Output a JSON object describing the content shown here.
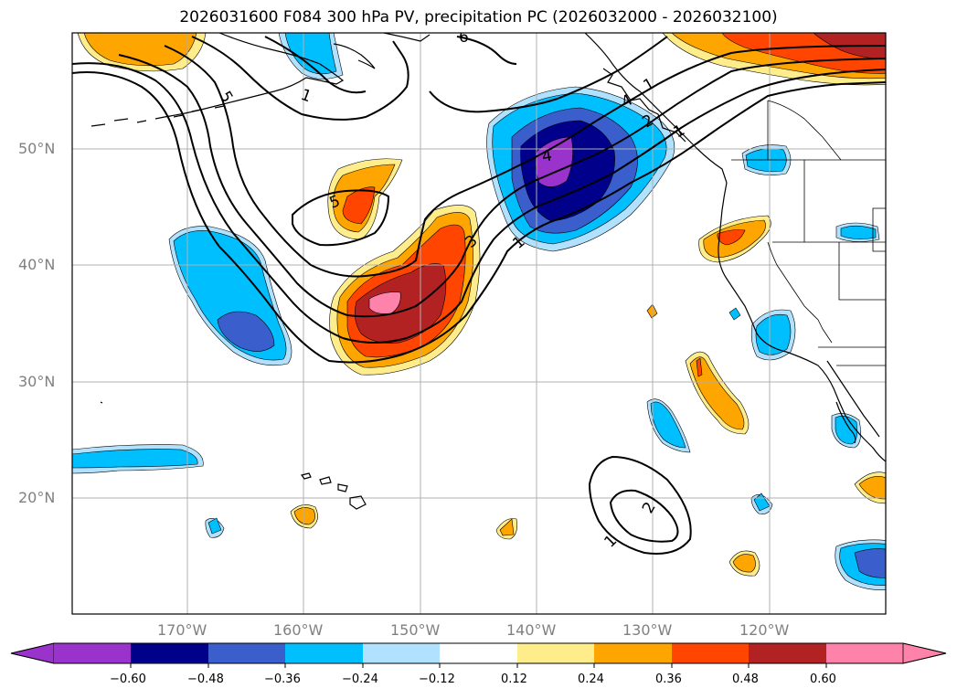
{
  "title": "2026031600 F084 300 hPa PV, precipitation PC (2026032000 - 2026032100)",
  "lat_labels": [
    "50°N",
    "40°N",
    "30°N",
    "20°N"
  ],
  "lon_labels": [
    "170°W",
    "160°W",
    "150°W",
    "140°W",
    "130°W",
    "120°W"
  ],
  "contour_labels": [
    "5",
    "1",
    "5",
    "3",
    "1",
    "4",
    "4",
    "2",
    "1",
    "1",
    "2",
    "1",
    "6"
  ],
  "colorbar": {
    "tick_labels": [
      "−0.60",
      "−0.48",
      "−0.36",
      "−0.24",
      "−0.12",
      "0.12",
      "0.24",
      "0.36",
      "0.48",
      "0.60"
    ],
    "colors": {
      "under": "#9933cc",
      "bins": [
        "#9933cc",
        "#00008b",
        "#3a5fcd",
        "#00bfff",
        "#b0e2ff",
        "#ffffff",
        "#ffec8b",
        "#ffa500",
        "#ff4500",
        "#b22222",
        "#ff82ab"
      ],
      "over": "#ff82ab"
    }
  }
}
